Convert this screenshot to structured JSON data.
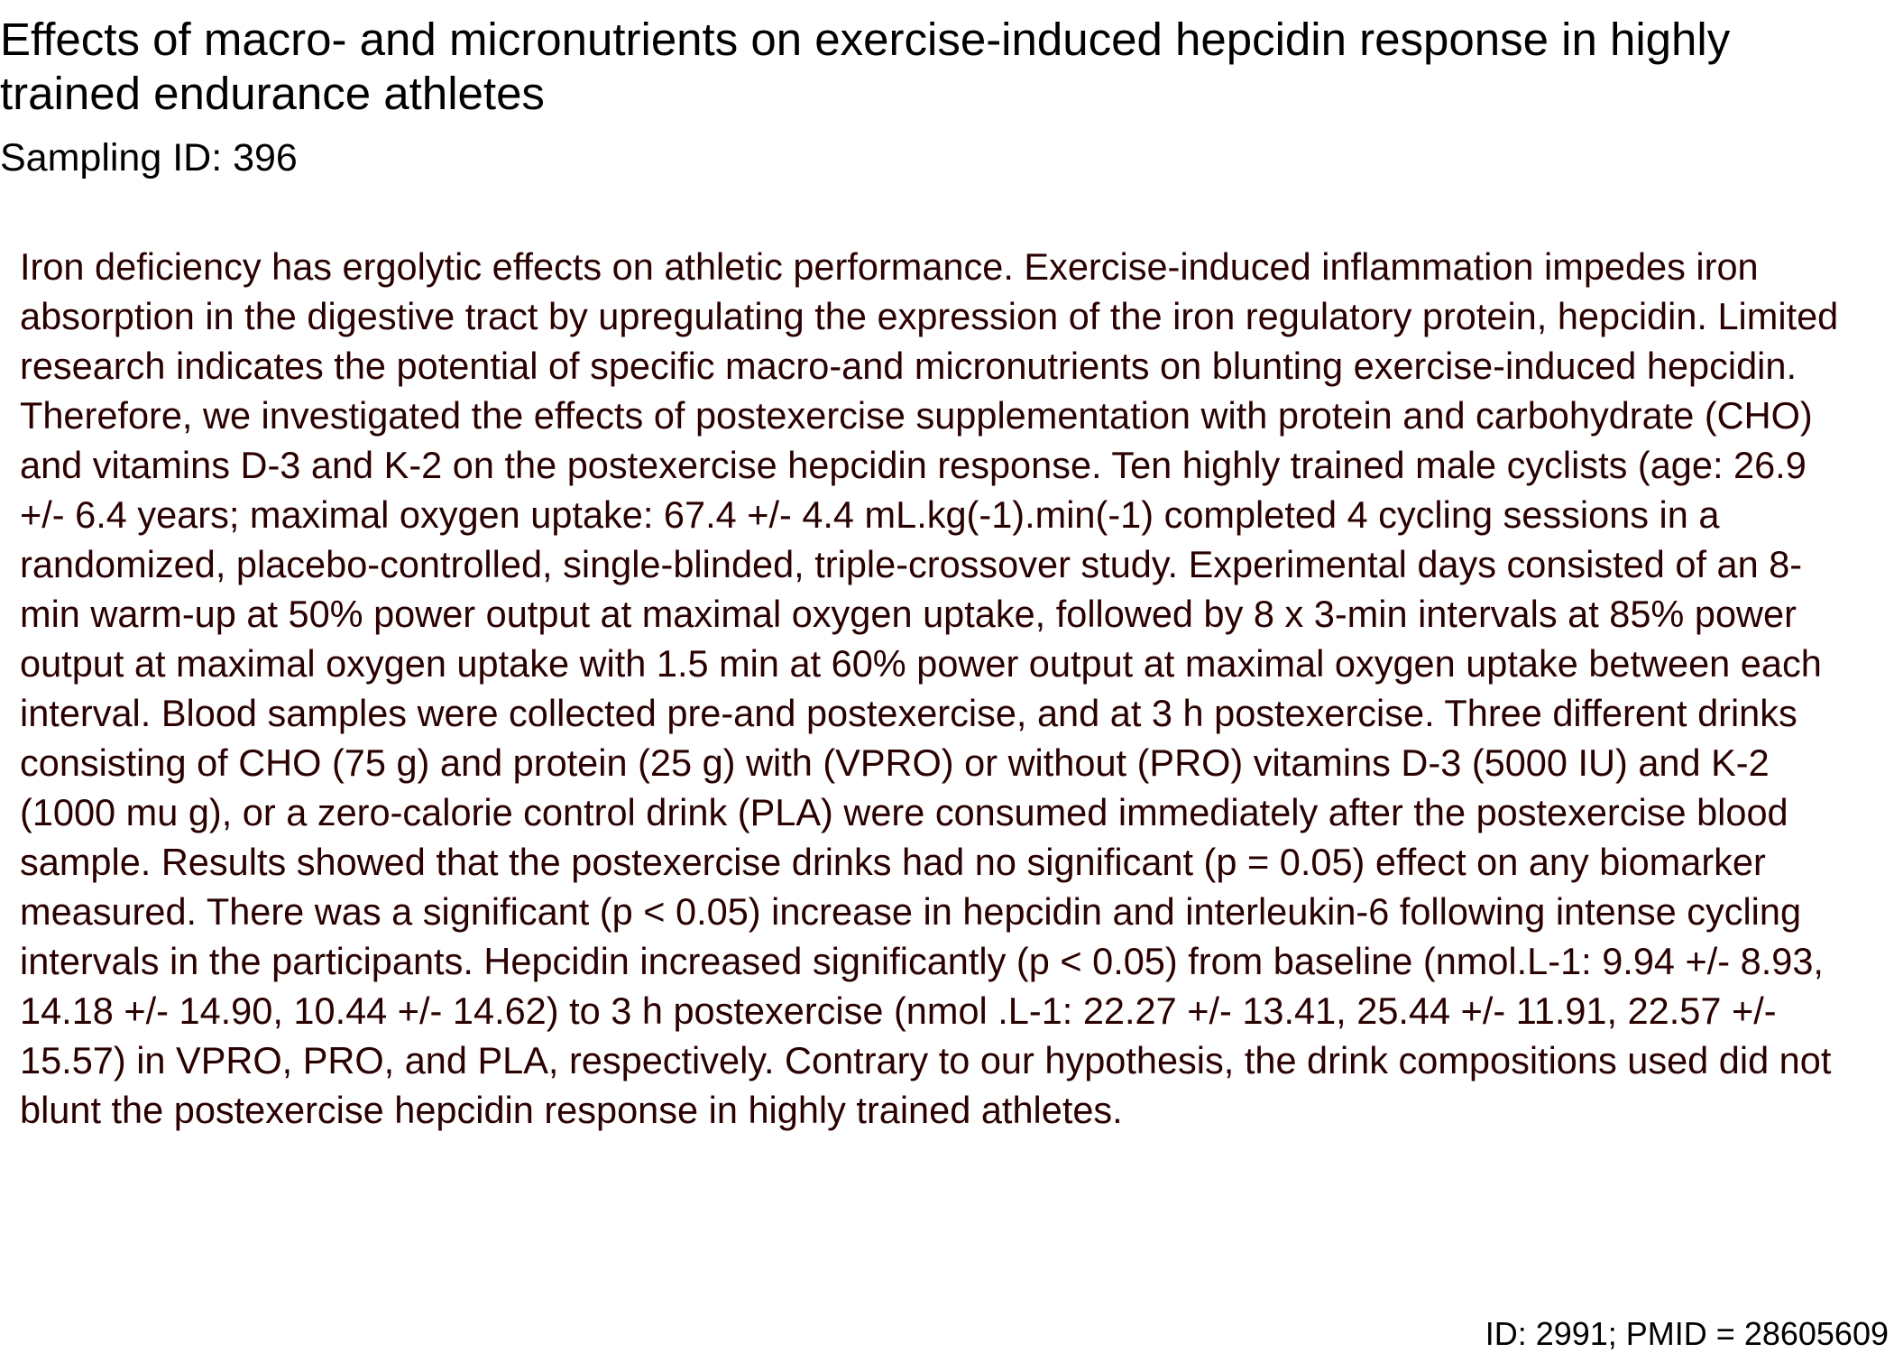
{
  "document": {
    "title": "Effects of macro- and micronutrients on exercise-induced hepcidin response in highly trained endurance athletes",
    "sampling_id": "Sampling ID: 396",
    "abstract": "Iron deficiency has ergolytic effects on athletic performance. Exercise-induced inflammation impedes iron absorption in the digestive tract by upregulating the expression of the iron regulatory protein, hepcidin. Limited research indicates the potential of specific macro-and micronutrients on blunting exercise-induced hepcidin. Therefore, we investigated the effects of postexercise supplementation with protein and carbohydrate (CHO) and vitamins D-3 and K-2 on the postexercise hepcidin response. Ten highly trained male cyclists (age: 26.9 +/- 6.4 years; maximal oxygen uptake: 67.4 +/- 4.4 mL.kg(-1).min(-1) completed 4 cycling sessions in a randomized, placebo-controlled, single-blinded, triple-crossover study. Experimental days consisted of an 8-min warm-up at 50% power output at maximal oxygen uptake, followed by 8 x 3-min intervals at 85% power output at maximal oxygen uptake with 1.5 min at 60% power output at maximal oxygen uptake between each interval. Blood samples were collected pre-and postexercise, and at 3 h postexercise. Three different drinks consisting of CHO (75 g) and protein (25 g) with (VPRO) or without (PRO) vitamins D-3 (5000 IU) and K-2 (1000 mu g), or a zero-calorie control drink (PLA) were consumed immediately after the postexercise blood sample. Results showed that the postexercise drinks had no significant (p = 0.05) effect on any biomarker measured. There was a significant (p < 0.05) increase in hepcidin and interleukin-6 following intense cycling intervals in the participants. Hepcidin increased significantly (p < 0.05) from baseline (nmol.L-1: 9.94 +/- 8.93, 14.18 +/- 14.90, 10.44 +/- 14.62) to 3 h postexercise (nmol .L-1: 22.27 +/- 13.41, 25.44 +/- 11.91, 22.57 +/- 15.57) in VPRO, PRO, and PLA, respectively. Contrary to our hypothesis, the drink compositions used did not blunt the postexercise hepcidin response in highly trained athletes.",
    "footer": "ID: 2991; PMID = 28605609"
  },
  "colors": {
    "title": "#000000",
    "abstract_text": "#2a0000",
    "background": "#ffffff"
  }
}
